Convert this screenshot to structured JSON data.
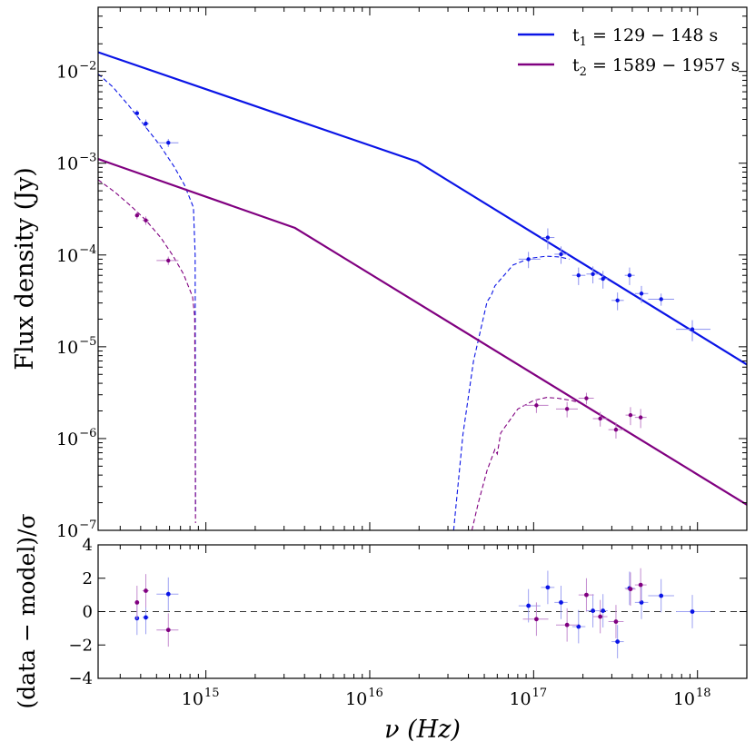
{
  "chart_data": [
    {
      "type": "line",
      "xlabel": "ν (Hz)",
      "ylabel": "Flux density (Jy)",
      "xscale": "log",
      "yscale": "log",
      "xlim": [
        220000000000000.0,
        2e+18
      ],
      "ylim": [
        1e-07,
        0.05
      ],
      "x_ticks": [
        {
          "value": 1000000000000000.0,
          "label": "10",
          "exp": "15"
        },
        {
          "value": 1e+16,
          "label": "10",
          "exp": "16"
        },
        {
          "value": 1e+17,
          "label": "10",
          "exp": "17"
        },
        {
          "value": 1e+18,
          "label": "10",
          "exp": "18"
        }
      ],
      "y_ticks": [
        {
          "value": 1e-07,
          "label": "10",
          "exp": "−7"
        },
        {
          "value": 1e-06,
          "label": "10",
          "exp": "−6"
        },
        {
          "value": 1e-05,
          "label": "10",
          "exp": "−5"
        },
        {
          "value": 0.0001,
          "label": "10",
          "exp": "−4"
        },
        {
          "value": 0.001,
          "label": "10",
          "exp": "−3"
        },
        {
          "value": 0.01,
          "label": "10",
          "exp": "−2"
        }
      ],
      "grid": false,
      "legend": "top-right",
      "series": [
        {
          "name_main": "t",
          "name_sub": "1",
          "name_rest": " = 129 − 148 s",
          "color": "#0a14e6",
          "model": {
            "x": [
              220000000000000.0,
              1.95e+16,
              2e+18
            ],
            "y": [
              0.0162,
              0.00104,
              6.4e-06
            ]
          },
          "absorbed": [
            {
              "x": [
                220000000000000.0,
                270000000000000.0,
                340000000000000.0,
                420000000000000.0,
                520000000000000.0,
                640000000000000.0,
                740000000000000.0,
                840000000000000.0,
                860000000000000.0,
                865000000000000.0
              ],
              "y": [
                0.0094,
                0.0068,
                0.0042,
                0.0026,
                0.0016,
                0.00092,
                0.00058,
                0.00033,
                0.0001,
                1.5e-07
              ]
            },
            {
              "x": [
                3.25e+16,
                3.7e+16,
                4.3e+16,
                5.2e+16,
                5.5e+16,
                5.8e+16,
                7.5e+16,
                9.5e+16,
                1.2e+17,
                1.45e+17,
                1.65e+17
              ],
              "y": [
                1e-07,
                1.1e-06,
                7e-06,
                3.1e-05,
                3.6e-05,
                4.6e-05,
                7.8e-05,
                9.2e-05,
                9.7e-05,
                9.5e-05,
                9e-05
              ]
            }
          ],
          "points": [
            {
              "x": 380000000000000.0,
              "y": 0.0035,
              "xerr": [
                10000000000000.0,
                10000000000000.0
              ],
              "yerr": 0.0003
            },
            {
              "x": 430000000000000.0,
              "y": 0.0027,
              "xerr": [
                20000000000000.0,
                20000000000000.0
              ],
              "yerr": 0.0003
            },
            {
              "x": 590000000000000.0,
              "y": 0.00167,
              "xerr": [
                90000000000000.0,
                90000000000000.0
              ],
              "yerr": 0.00017
            },
            {
              "x": 9.3e+16,
              "y": 9e-05,
              "xerr": [
                1.2e+16,
                1.7e+16
              ],
              "yerr": 1.8e-05
            },
            {
              "x": 1.22e+17,
              "y": 0.000155,
              "xerr": [
                1.1e+16,
                1.2e+16
              ],
              "yerr": 4e-05
            },
            {
              "x": 1.47e+17,
              "y": 0.000102,
              "xerr": [
                1.3e+16,
                1.4e+16
              ],
              "yerr": 2.2e-05
            },
            {
              "x": 1.88e+17,
              "y": 6e-05,
              "xerr": [
                1.6e+16,
                1.9e+16
              ],
              "yerr": 1.3e-05
            },
            {
              "x": 2.3e+17,
              "y": 6.2e-05,
              "xerr": [
                2e+16,
                2.2e+16
              ],
              "yerr": 1.3e-05
            },
            {
              "x": 2.65e+17,
              "y": 5.5e-05,
              "xerr": [
                1.6e+16,
                1.8e+16
              ],
              "yerr": 1.2e-05
            },
            {
              "x": 3.25e+17,
              "y": 3.2e-05,
              "xerr": [
                2.6e+16,
                3e+16
              ],
              "yerr": 7e-06
            },
            {
              "x": 3.85e+17,
              "y": 6e-05,
              "xerr": [
                2.5e+16,
                2.9e+16
              ],
              "yerr": 1.3e-05
            },
            {
              "x": 4.55e+17,
              "y": 3.8e-05,
              "xerr": [
                4e+16,
                4.5e+16
              ],
              "yerr": 8e-06
            },
            {
              "x": 6e+17,
              "y": 3.3e-05,
              "xerr": [
                1e+17,
                1.2e+17
              ],
              "yerr": 5e-06
            },
            {
              "x": 9.3e+17,
              "y": 1.55e-05,
              "xerr": [
                1.9e+17,
                2.7e+17
              ],
              "yerr": 4e-06
            }
          ],
          "residuals": [
            {
              "x": 380000000000000.0,
              "r": -0.4,
              "xerr": [
                10000000000000.0,
                10000000000000.0
              ],
              "rerr": 1.0
            },
            {
              "x": 430000000000000.0,
              "r": -0.35,
              "xerr": [
                20000000000000.0,
                20000000000000.0
              ],
              "rerr": 1.0
            },
            {
              "x": 590000000000000.0,
              "r": 1.05,
              "xerr": [
                90000000000000.0,
                90000000000000.0
              ],
              "rerr": 1.0
            },
            {
              "x": 9.3e+16,
              "r": 0.35,
              "xerr": [
                1.2e+16,
                1.7e+16
              ],
              "rerr": 1.0
            },
            {
              "x": 1.22e+17,
              "r": 1.45,
              "xerr": [
                1.1e+16,
                1.2e+16
              ],
              "rerr": 1.0
            },
            {
              "x": 1.47e+17,
              "r": 0.55,
              "xerr": [
                1.3e+16,
                1.4e+16
              ],
              "rerr": 1.0
            },
            {
              "x": 1.88e+17,
              "r": -0.9,
              "xerr": [
                1.6e+16,
                1.9e+16
              ],
              "rerr": 1.0
            },
            {
              "x": 2.3e+17,
              "r": 0.05,
              "xerr": [
                2e+16,
                2.2e+16
              ],
              "rerr": 1.0
            },
            {
              "x": 2.65e+17,
              "r": 0.05,
              "xerr": [
                1.6e+16,
                1.8e+16
              ],
              "rerr": 1.0
            },
            {
              "x": 3.25e+17,
              "r": -1.8,
              "xerr": [
                2.6e+16,
                3e+16
              ],
              "rerr": 1.0
            },
            {
              "x": 3.85e+17,
              "r": 1.4,
              "xerr": [
                2.5e+16,
                2.9e+16
              ],
              "rerr": 1.0
            },
            {
              "x": 4.55e+17,
              "r": 0.55,
              "xerr": [
                4e+16,
                4.5e+16
              ],
              "rerr": 1.0
            },
            {
              "x": 6e+17,
              "r": 0.95,
              "xerr": [
                1e+17,
                1.2e+17
              ],
              "rerr": 1.0
            },
            {
              "x": 9.3e+17,
              "r": 0.0,
              "xerr": [
                1.9e+17,
                2.7e+17
              ],
              "rerr": 1.0
            }
          ]
        },
        {
          "name_main": "t",
          "name_sub": "2",
          "name_rest": " = 1589 − 1957 s",
          "color": "#800080",
          "model": {
            "x": [
              220000000000000.0,
              3500000000000000.0,
              2e+18
            ],
            "y": [
              0.00111,
              0.000197,
              1.9e-07
            ]
          },
          "absorbed": [
            {
              "x": [
                220000000000000.0,
                280000000000000.0,
                350000000000000.0,
                430000000000000.0,
                530000000000000.0,
                630000000000000.0,
                730000000000000.0,
                830000000000000.0,
                855000000000000.0,
                865000000000000.0
              ],
              "y": [
                0.00066,
                0.00048,
                0.00034,
                0.00024,
                0.000155,
                9.8e-05,
                6.2e-05,
                3.5e-05,
                2.1e-05,
                1.2e-07
              ]
            },
            {
              "x": [
                4.2e+16,
                4.6e+16,
                5.2e+16,
                5.8e+16,
                6e+16,
                6.3e+16,
                8e+16,
                1e+17,
                1.2e+17,
                1.4e+17,
                1.7e+17,
                2e+17
              ],
              "y": [
                1e-07,
                2e-07,
                4.5e-07,
                7.6e-07,
                6.8e-07,
                1.15e-06,
                2.1e-06,
                2.6e-06,
                2.8e-06,
                2.75e-06,
                2.6e-06,
                2.4e-06
              ]
            }
          ],
          "points": [
            {
              "x": 380000000000000.0,
              "y": 0.00027,
              "xerr": [
                10000000000000.0,
                10000000000000.0
              ],
              "yerr": 2.5e-05
            },
            {
              "x": 430000000000000.0,
              "y": 0.000238,
              "xerr": [
                20000000000000.0,
                20000000000000.0
              ],
              "yerr": 2.5e-05
            },
            {
              "x": 590000000000000.0,
              "y": 8.7e-05,
              "xerr": [
                90000000000000.0,
                90000000000000.0
              ],
              "yerr": 9e-06
            },
            {
              "x": 1.04e+17,
              "y": 2.3e-06,
              "xerr": [
                1.8e+16,
                1.9e+16
              ],
              "yerr": 4e-07
            },
            {
              "x": 1.6e+17,
              "y": 2.1e-06,
              "xerr": [
                2.3e+16,
                2.6e+16
              ],
              "yerr": 4e-07
            },
            {
              "x": 2.1e+17,
              "y": 2.75e-06,
              "xerr": [
                2.2e+16,
                2.3e+16
              ],
              "yerr": 4e-07
            },
            {
              "x": 2.55e+17,
              "y": 1.65e-06,
              "xerr": [
                2.5e+16,
                2.7e+16
              ],
              "yerr": 3e-07
            },
            {
              "x": 3.18e+17,
              "y": 1.25e-06,
              "xerr": [
                3.2e+16,
                3.6e+16
              ],
              "yerr": 2.5e-07
            },
            {
              "x": 3.9e+17,
              "y": 1.8e-06,
              "xerr": [
                2.6e+16,
                2.9e+16
              ],
              "yerr": 4e-07
            },
            {
              "x": 4.5e+17,
              "y": 1.7e-06,
              "xerr": [
                3.5e+16,
                3.9e+16
              ],
              "yerr": 4e-07
            }
          ],
          "residuals": [
            {
              "x": 380000000000000.0,
              "r": 0.55,
              "xerr": [
                10000000000000.0,
                10000000000000.0
              ],
              "rerr": 1.0
            },
            {
              "x": 430000000000000.0,
              "r": 1.25,
              "xerr": [
                20000000000000.0,
                20000000000000.0
              ],
              "rerr": 1.0
            },
            {
              "x": 590000000000000.0,
              "r": -1.1,
              "xerr": [
                90000000000000.0,
                90000000000000.0
              ],
              "rerr": 1.0
            },
            {
              "x": 1.04e+17,
              "r": -0.45,
              "xerr": [
                1.8e+16,
                1.9e+16
              ],
              "rerr": 1.0
            },
            {
              "x": 1.6e+17,
              "r": -0.8,
              "xerr": [
                2.3e+16,
                2.6e+16
              ],
              "rerr": 1.0
            },
            {
              "x": 2.1e+17,
              "r": 1.0,
              "xerr": [
                2.2e+16,
                2.3e+16
              ],
              "rerr": 1.0
            },
            {
              "x": 2.55e+17,
              "r": -0.3,
              "xerr": [
                2.5e+16,
                2.7e+16
              ],
              "rerr": 1.0
            },
            {
              "x": 3.18e+17,
              "r": -0.6,
              "xerr": [
                3.2e+16,
                3.6e+16
              ],
              "rerr": 1.0
            },
            {
              "x": 3.9e+17,
              "r": 1.35,
              "xerr": [
                2.6e+16,
                2.9e+16
              ],
              "rerr": 1.0
            },
            {
              "x": 4.5e+17,
              "r": 1.6,
              "xerr": [
                3.5e+16,
                3.9e+16
              ],
              "rerr": 1.0
            }
          ]
        }
      ]
    },
    {
      "type": "scatter",
      "ylabel": "(data − model)/σ",
      "xscale": "log",
      "ylim": [
        -4,
        4
      ],
      "y_ticks": [
        4,
        2,
        0,
        -2,
        -4
      ],
      "reference_line": 0,
      "note": "residuals per series are stored under chart_data[0].series[*].residuals"
    }
  ]
}
